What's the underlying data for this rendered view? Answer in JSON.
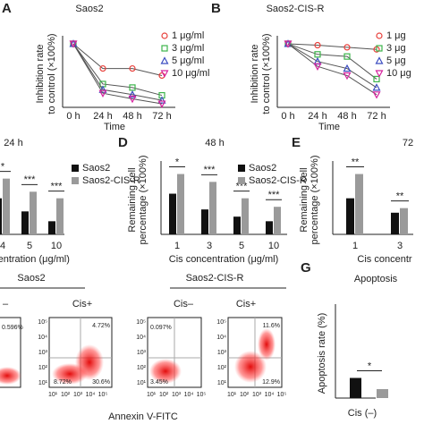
{
  "chart_data": [
    {
      "type": "line",
      "panel": "A",
      "title": "Saos2",
      "ylabel": [
        "Inhibition rate",
        "to control (×100%)"
      ],
      "xlabel": "Time",
      "categories": [
        "0 h",
        "24 h",
        "48 h",
        "72 h"
      ],
      "ylim": [
        0.1,
        1.05
      ],
      "series": [
        {
          "name": "1 μg/ml",
          "color": "#e8413c",
          "marker": "circle",
          "values": [
            1,
            0.65,
            0.65,
            0.55
          ]
        },
        {
          "name": "3 μg/ml",
          "color": "#3cb44b",
          "marker": "square",
          "values": [
            1,
            0.43,
            0.38,
            0.27
          ]
        },
        {
          "name": "5 μg/ml",
          "color": "#3b4cc0",
          "marker": "triangle",
          "values": [
            1,
            0.35,
            0.28,
            0.2
          ]
        },
        {
          "name": "10 μg/ml",
          "color": "#d6229e",
          "marker": "down-triangle",
          "values": [
            1,
            0.3,
            0.22,
            0.15
          ]
        }
      ]
    },
    {
      "type": "line",
      "panel": "B",
      "title": "Saos2-CIS-R",
      "ylabel": [
        "Inhibition rate",
        "to control (×100%)"
      ],
      "xlabel": "Time",
      "categories": [
        "0 h",
        "24 h",
        "48 h",
        "72 h"
      ],
      "ylim": [
        0.1,
        1.05
      ],
      "series": [
        {
          "name": "1 μg",
          "color": "#e8413c",
          "marker": "circle",
          "values": [
            1,
            0.98,
            0.95,
            0.92
          ]
        },
        {
          "name": "3 μg",
          "color": "#3cb44b",
          "marker": "square",
          "values": [
            1,
            0.85,
            0.82,
            0.5
          ]
        },
        {
          "name": "5 μg",
          "color": "#3b4cc0",
          "marker": "triangle",
          "values": [
            1,
            0.75,
            0.65,
            0.38
          ]
        },
        {
          "name": "10 μg",
          "color": "#d6229e",
          "marker": "down-triangle",
          "values": [
            1,
            0.68,
            0.55,
            0.28
          ]
        }
      ]
    },
    {
      "type": "bar",
      "title": "24 h",
      "xlabel": "centration (μg/ml)",
      "categories": [
        "4",
        "5",
        "10"
      ],
      "ylim": [
        0,
        1.05
      ],
      "significance": [
        "*",
        "***",
        "***"
      ],
      "series": [
        {
          "name": "Saos2",
          "color": "#111111",
          "values": [
            0.55,
            0.35,
            0.2
          ]
        },
        {
          "name": "Saos2-CIS-R",
          "color": "#9a9a9a",
          "values": [
            0.85,
            0.65,
            0.55
          ]
        }
      ]
    },
    {
      "type": "bar",
      "panel": "D",
      "title": "48 h",
      "ylabel": [
        "Remaining cell",
        "percentage (×100%)"
      ],
      "xlabel": "Cis concentration (μg/ml)",
      "categories": [
        "1",
        "3",
        "5",
        "10"
      ],
      "ylim": [
        0,
        1.05
      ],
      "significance": [
        "*",
        "***",
        "***",
        "***"
      ],
      "series": [
        {
          "name": "Saos2",
          "color": "#111111",
          "values": [
            0.62,
            0.38,
            0.27,
            0.2
          ]
        },
        {
          "name": "Saos2-CIS-R",
          "color": "#9a9a9a",
          "values": [
            0.92,
            0.8,
            0.55,
            0.42
          ]
        }
      ]
    },
    {
      "type": "bar",
      "panel": "E",
      "title": "72",
      "ylabel": [
        "Remaining cell",
        "percentage (×100%)"
      ],
      "xlabel": "Cis concentr",
      "categories": [
        "1",
        "3"
      ],
      "ylim": [
        0,
        1.05
      ],
      "significance": [
        "**",
        "**"
      ],
      "series": [
        {
          "name": "Saos2",
          "color": "#111111",
          "values": [
            0.55,
            0.33
          ]
        },
        {
          "name": "Saos2-CIS-R",
          "color": "#9a9a9a",
          "values": [
            0.92,
            0.4
          ]
        }
      ]
    },
    {
      "type": "bar",
      "panel": "G",
      "title": "Apoptosis",
      "ylabel": [
        "Apoptosis rate (%)"
      ],
      "xlabel": "Cis (–)",
      "categories": [
        "Cis (–)"
      ],
      "ylim": [
        0,
        40
      ],
      "significance": [
        "*"
      ],
      "series": [
        {
          "name": "Saos2",
          "color": "#111111",
          "values": [
            9
          ]
        },
        {
          "name": "Saos2-CIS-R",
          "color": "#9a9a9a",
          "values": [
            4
          ]
        }
      ]
    }
  ],
  "flow": {
    "groups": [
      "Saos2",
      "Saos2-CIS-R"
    ],
    "conditions": [
      "–",
      "Cis+",
      "Cis–",
      "Cis+"
    ],
    "percentages": [
      "0.596%",
      "4.72%",
      "8.72%",
      "30.6%",
      "0.097%",
      "11.6%",
      "3.45%",
      "12.9%"
    ],
    "axis_ticks": [
      "10⁵",
      "10⁴",
      "10³",
      "10²",
      "10¹"
    ],
    "xlabel": "Annexin V-FITC"
  }
}
